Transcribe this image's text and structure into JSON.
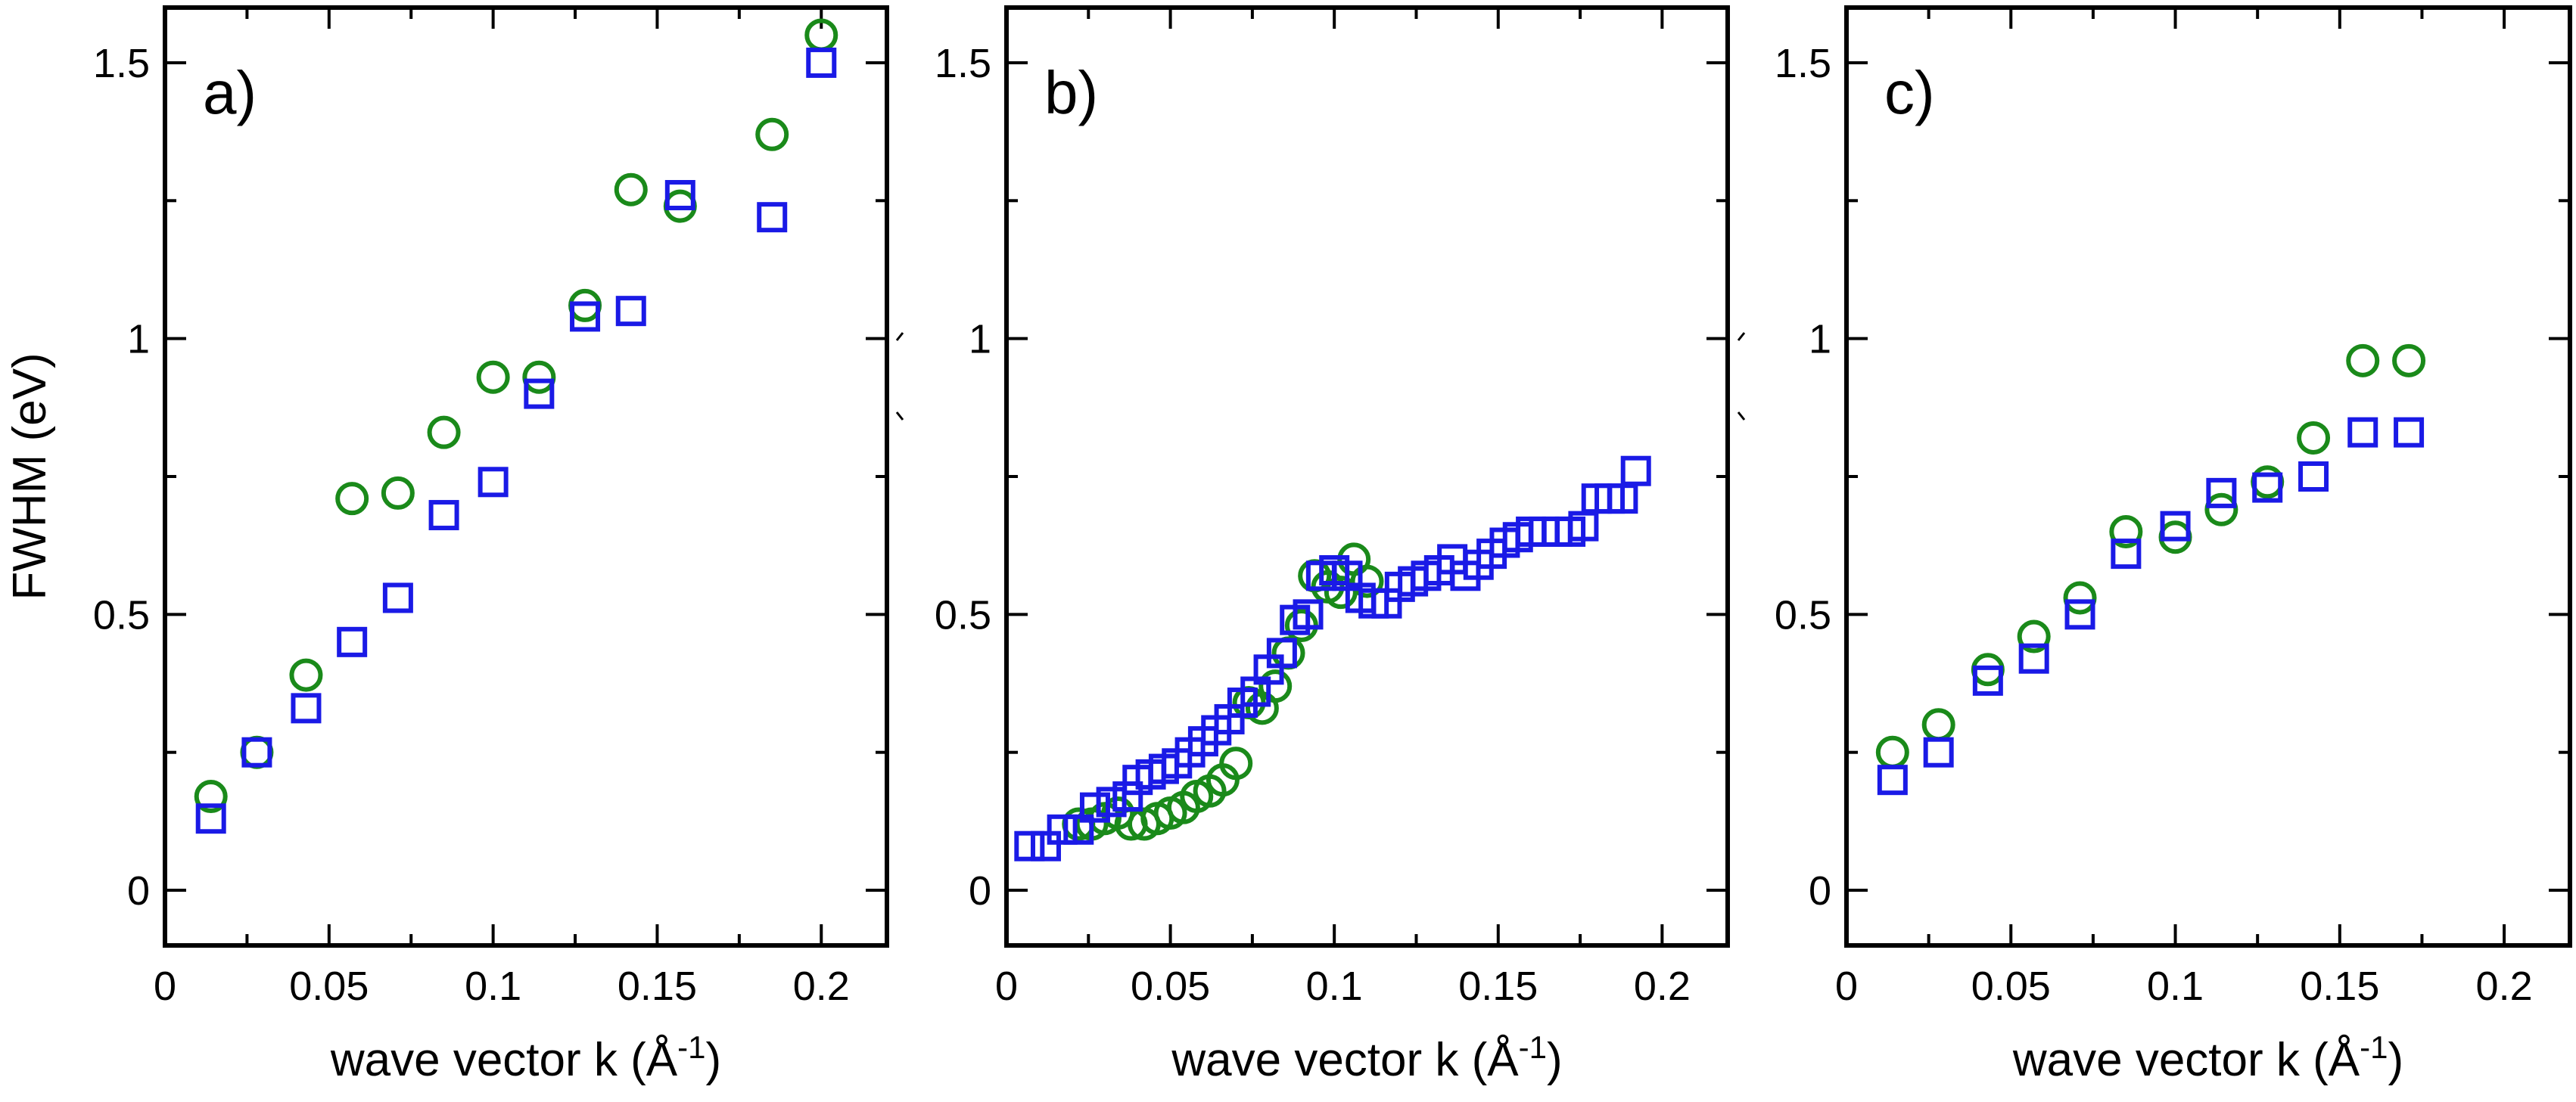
{
  "chart_data": [
    {
      "type": "scatter",
      "panel_label": "a)",
      "ylabel": "FWHM (eV)",
      "xlabel": "wave vector k (Å",
      "xlabel_sup": "-1",
      "xlabel_close": ")",
      "xlim": [
        0,
        0.22
      ],
      "ylim": [
        -0.1,
        1.6
      ],
      "xticks": [
        0,
        0.05,
        0.1,
        0.15,
        0.2
      ],
      "xtick_labels": [
        "0",
        "0.05",
        "0.1",
        "0.15",
        "0.2"
      ],
      "yticks": [
        0,
        0.5,
        1,
        1.5
      ],
      "ytick_labels": [
        "0",
        "0.5",
        "1",
        "1.5"
      ],
      "series": [
        {
          "name": "circles",
          "marker": "circle",
          "color": "#1a8a1a",
          "x": [
            0.014,
            0.028,
            0.043,
            0.057,
            0.071,
            0.085,
            0.1,
            0.114,
            0.128,
            0.142,
            0.157,
            0.185,
            0.2
          ],
          "y": [
            0.17,
            0.25,
            0.39,
            0.71,
            0.72,
            0.83,
            0.93,
            0.93,
            1.06,
            1.27,
            1.24,
            1.37,
            1.55
          ]
        },
        {
          "name": "squares",
          "marker": "square",
          "color": "#1a1ae6",
          "x": [
            0.014,
            0.028,
            0.043,
            0.057,
            0.071,
            0.085,
            0.1,
            0.114,
            0.128,
            0.142,
            0.157,
            0.185,
            0.2
          ],
          "y": [
            0.13,
            0.25,
            0.33,
            0.45,
            0.53,
            0.68,
            0.74,
            0.9,
            1.04,
            1.05,
            1.26,
            1.22,
            1.5
          ]
        }
      ]
    },
    {
      "type": "scatter",
      "panel_label": "b)",
      "xlabel": "wave vector k (Å",
      "xlabel_sup": "-1",
      "xlabel_close": ")",
      "xlim": [
        0,
        0.22
      ],
      "ylim": [
        -0.1,
        1.6
      ],
      "xticks": [
        0,
        0.05,
        0.1,
        0.15,
        0.2
      ],
      "xtick_labels": [
        "0",
        "0.05",
        "0.1",
        "0.15",
        "0.2"
      ],
      "yticks": [
        0,
        0.5,
        1,
        1.5
      ],
      "ytick_labels": [
        "0",
        "0.5",
        "1",
        "1.5"
      ],
      "series": [
        {
          "name": "circles",
          "marker": "circle",
          "color": "#1a8a1a",
          "x": [
            0.022,
            0.026,
            0.03,
            0.034,
            0.038,
            0.042,
            0.046,
            0.05,
            0.054,
            0.058,
            0.062,
            0.066,
            0.07,
            0.074,
            0.078,
            0.082,
            0.086,
            0.09,
            0.094,
            0.098,
            0.102,
            0.106,
            0.11
          ],
          "y": [
            0.12,
            0.12,
            0.13,
            0.14,
            0.12,
            0.12,
            0.13,
            0.14,
            0.15,
            0.17,
            0.18,
            0.2,
            0.23,
            0.34,
            0.33,
            0.37,
            0.43,
            0.48,
            0.57,
            0.55,
            0.54,
            0.6,
            0.56
          ]
        },
        {
          "name": "squares",
          "marker": "square",
          "color": "#1a1ae6",
          "x": [
            0.007,
            0.012,
            0.017,
            0.022,
            0.027,
            0.032,
            0.037,
            0.04,
            0.044,
            0.048,
            0.052,
            0.056,
            0.06,
            0.064,
            0.068,
            0.072,
            0.076,
            0.08,
            0.084,
            0.088,
            0.092,
            0.096,
            0.1,
            0.104,
            0.108,
            0.112,
            0.116,
            0.12,
            0.124,
            0.128,
            0.132,
            0.136,
            0.14,
            0.144,
            0.148,
            0.152,
            0.156,
            0.16,
            0.164,
            0.168,
            0.172,
            0.176,
            0.18,
            0.184,
            0.188,
            0.192
          ],
          "y": [
            0.08,
            0.08,
            0.11,
            0.11,
            0.15,
            0.16,
            0.17,
            0.2,
            0.21,
            0.22,
            0.23,
            0.25,
            0.27,
            0.29,
            0.31,
            0.34,
            0.36,
            0.4,
            0.43,
            0.49,
            0.5,
            0.57,
            0.58,
            0.57,
            0.53,
            0.52,
            0.52,
            0.55,
            0.56,
            0.57,
            0.58,
            0.6,
            0.57,
            0.59,
            0.61,
            0.63,
            0.64,
            0.65,
            0.65,
            0.65,
            0.65,
            0.66,
            0.71,
            0.71,
            0.71,
            0.76
          ]
        }
      ]
    },
    {
      "type": "scatter",
      "panel_label": "c)",
      "xlabel": "wave vector k (Å",
      "xlabel_sup": "-1",
      "xlabel_close": ")",
      "xlim": [
        0,
        0.22
      ],
      "ylim": [
        -0.1,
        1.6
      ],
      "xticks": [
        0,
        0.05,
        0.1,
        0.15,
        0.2
      ],
      "xtick_labels": [
        "0",
        "0.05",
        "0.1",
        "0.15",
        "0.2"
      ],
      "yticks": [
        0,
        0.5,
        1,
        1.5
      ],
      "ytick_labels": [
        "0",
        "0.5",
        "1",
        "1.5"
      ],
      "series": [
        {
          "name": "circles",
          "marker": "circle",
          "color": "#1a8a1a",
          "x": [
            0.014,
            0.028,
            0.043,
            0.057,
            0.071,
            0.085,
            0.1,
            0.114,
            0.128,
            0.142,
            0.157,
            0.171
          ],
          "y": [
            0.25,
            0.3,
            0.4,
            0.46,
            0.53,
            0.65,
            0.64,
            0.69,
            0.74,
            0.82,
            0.96,
            0.96
          ]
        },
        {
          "name": "squares",
          "marker": "square",
          "color": "#1a1ae6",
          "x": [
            0.014,
            0.028,
            0.043,
            0.057,
            0.071,
            0.085,
            0.1,
            0.114,
            0.128,
            0.142,
            0.157,
            0.171
          ],
          "y": [
            0.2,
            0.25,
            0.38,
            0.42,
            0.5,
            0.61,
            0.66,
            0.72,
            0.73,
            0.75,
            0.83,
            0.83
          ]
        }
      ]
    }
  ]
}
